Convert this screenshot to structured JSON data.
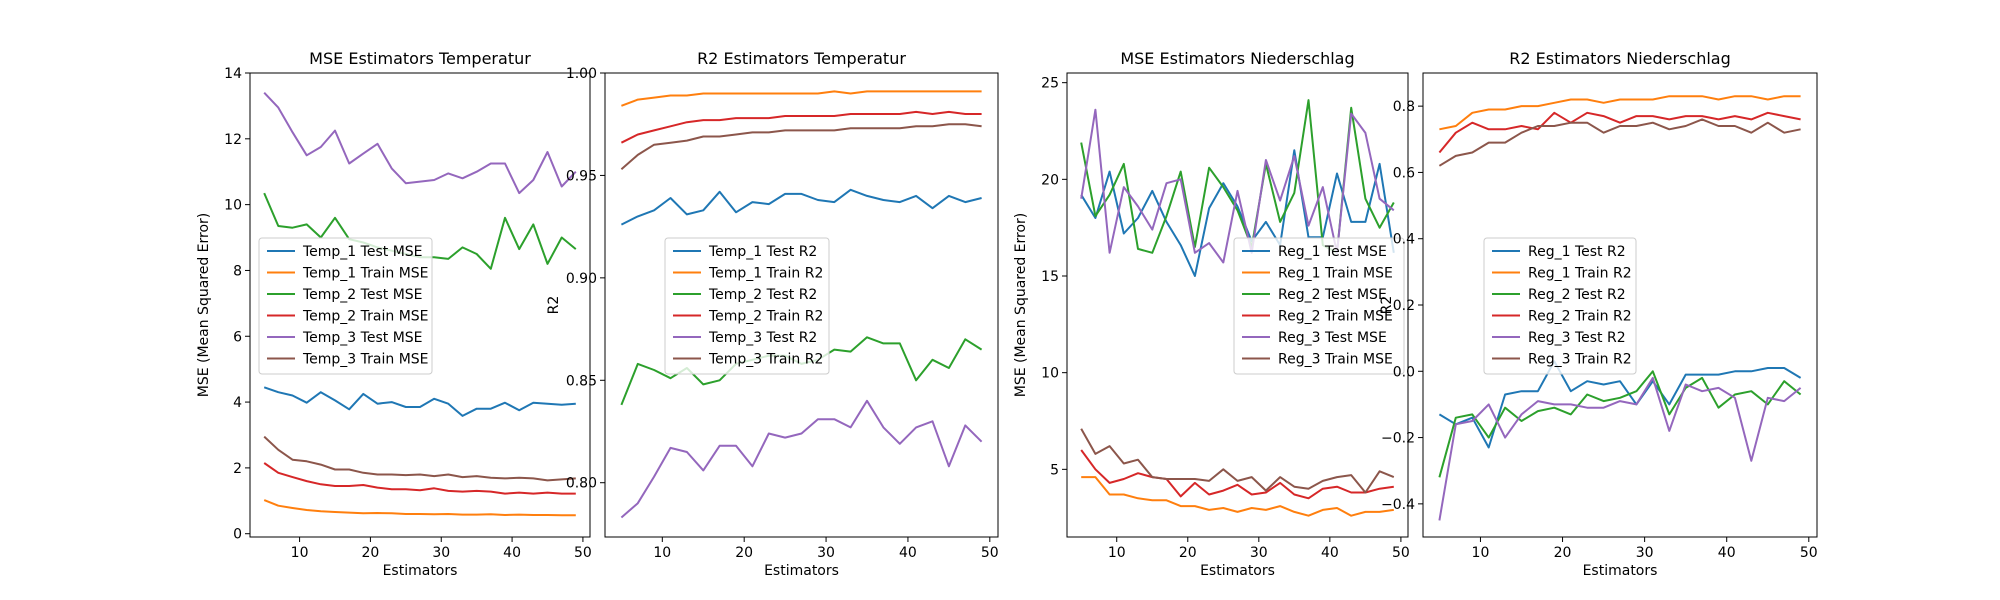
{
  "chart_data": [
    {
      "type": "line",
      "title": "MSE Estimators Temperatur",
      "xlabel": "Estimators",
      "ylabel": "MSE (Mean Squared Error)",
      "xlim": [
        3,
        51
      ],
      "ylim": [
        -0.1,
        14
      ],
      "xticks": [
        10,
        20,
        30,
        40,
        50
      ],
      "yticks": [
        0,
        2,
        4,
        6,
        8,
        10,
        12,
        14
      ],
      "ytick_labels": [
        "0",
        "2",
        "4",
        "6",
        "8",
        "10",
        "12",
        "14"
      ],
      "grid": false,
      "legend_placement": "center-left",
      "x": [
        5,
        7,
        9,
        11,
        13,
        15,
        17,
        19,
        21,
        23,
        25,
        27,
        29,
        31,
        33,
        35,
        37,
        39,
        41,
        43,
        45,
        47,
        49
      ],
      "series": [
        {
          "name": "Temp_1 Test MSE",
          "color": "#1f77b4",
          "values": [
            4.45,
            4.3,
            4.2,
            3.98,
            4.3,
            4.05,
            3.78,
            4.25,
            3.95,
            4.0,
            3.85,
            3.85,
            4.1,
            3.95,
            3.58,
            3.8,
            3.8,
            3.98,
            3.75,
            3.98,
            3.95,
            3.92,
            3.95
          ]
        },
        {
          "name": "Temp_1 Train MSE",
          "color": "#ff7f0e",
          "values": [
            1.02,
            0.85,
            0.78,
            0.72,
            0.68,
            0.66,
            0.64,
            0.62,
            0.63,
            0.62,
            0.6,
            0.6,
            0.59,
            0.6,
            0.58,
            0.58,
            0.59,
            0.57,
            0.58,
            0.57,
            0.57,
            0.56,
            0.56
          ]
        },
        {
          "name": "Temp_2 Test MSE",
          "color": "#2ca02c",
          "values": [
            10.35,
            9.35,
            9.3,
            9.4,
            9.0,
            9.6,
            8.95,
            8.85,
            8.7,
            8.6,
            8.5,
            8.4,
            8.4,
            8.35,
            8.7,
            8.5,
            8.05,
            9.6,
            8.65,
            9.4,
            8.2,
            9.0,
            8.65
          ]
        },
        {
          "name": "Temp_2 Train MSE",
          "color": "#d62728",
          "values": [
            2.15,
            1.85,
            1.72,
            1.6,
            1.5,
            1.45,
            1.45,
            1.48,
            1.4,
            1.35,
            1.35,
            1.32,
            1.38,
            1.3,
            1.28,
            1.3,
            1.28,
            1.22,
            1.25,
            1.22,
            1.25,
            1.22,
            1.22
          ]
        },
        {
          "name": "Temp_3 Test MSE",
          "color": "#9467bd",
          "values": [
            13.4,
            12.95,
            12.2,
            11.5,
            11.75,
            12.25,
            11.25,
            11.55,
            11.85,
            11.1,
            10.65,
            10.7,
            10.75,
            10.95,
            10.8,
            11.0,
            11.25,
            11.25,
            10.35,
            10.75,
            11.6,
            10.55,
            11.0
          ]
        },
        {
          "name": "Temp_3 Train MSE",
          "color": "#8c564b",
          "values": [
            2.95,
            2.55,
            2.25,
            2.2,
            2.1,
            1.95,
            1.95,
            1.85,
            1.8,
            1.8,
            1.78,
            1.8,
            1.75,
            1.8,
            1.72,
            1.75,
            1.7,
            1.68,
            1.7,
            1.68,
            1.62,
            1.65,
            1.68
          ]
        }
      ]
    },
    {
      "type": "line",
      "title": "R2 Estimators Temperatur",
      "xlabel": "Estimators",
      "ylabel": "R2",
      "xlim": [
        3,
        51
      ],
      "ylim": [
        0.7735,
        1.0
      ],
      "xticks": [
        10,
        20,
        30,
        40,
        50
      ],
      "yticks": [
        0.8,
        0.85,
        0.9,
        0.95,
        1.0
      ],
      "ytick_labels": [
        "0.80",
        "0.85",
        "0.90",
        "0.95",
        "1.00"
      ],
      "grid": false,
      "legend_placement": "center-left",
      "x": [
        5,
        7,
        9,
        11,
        13,
        15,
        17,
        19,
        21,
        23,
        25,
        27,
        29,
        31,
        33,
        35,
        37,
        39,
        41,
        43,
        45,
        47,
        49
      ],
      "series": [
        {
          "name": "Temp_1 Test R2",
          "color": "#1f77b4",
          "values": [
            0.926,
            0.93,
            0.933,
            0.939,
            0.931,
            0.933,
            0.942,
            0.932,
            0.937,
            0.936,
            0.941,
            0.941,
            0.938,
            0.937,
            0.943,
            0.94,
            0.938,
            0.937,
            0.94,
            0.934,
            0.94,
            0.937,
            0.939
          ]
        },
        {
          "name": "Temp_1 Train R2",
          "color": "#ff7f0e",
          "values": [
            0.984,
            0.987,
            0.988,
            0.989,
            0.989,
            0.99,
            0.99,
            0.99,
            0.99,
            0.99,
            0.99,
            0.99,
            0.99,
            0.991,
            0.99,
            0.991,
            0.991,
            0.991,
            0.991,
            0.991,
            0.991,
            0.991,
            0.991
          ]
        },
        {
          "name": "Temp_2 Test R2",
          "color": "#2ca02c",
          "values": [
            0.838,
            0.858,
            0.855,
            0.851,
            0.856,
            0.848,
            0.85,
            0.858,
            0.86,
            0.862,
            0.862,
            0.858,
            0.86,
            0.865,
            0.864,
            0.871,
            0.868,
            0.868,
            0.85,
            0.86,
            0.856,
            0.87,
            0.865
          ]
        },
        {
          "name": "Temp_2 Train R2",
          "color": "#d62728",
          "values": [
            0.966,
            0.97,
            0.972,
            0.974,
            0.976,
            0.977,
            0.977,
            0.978,
            0.978,
            0.978,
            0.979,
            0.979,
            0.979,
            0.979,
            0.98,
            0.98,
            0.98,
            0.98,
            0.981,
            0.98,
            0.981,
            0.98,
            0.98
          ]
        },
        {
          "name": "Temp_3 Test R2",
          "color": "#9467bd",
          "values": [
            0.783,
            0.79,
            0.803,
            0.817,
            0.815,
            0.806,
            0.818,
            0.818,
            0.808,
            0.824,
            0.822,
            0.824,
            0.831,
            0.831,
            0.827,
            0.84,
            0.827,
            0.819,
            0.827,
            0.83,
            0.808,
            0.828,
            0.82
          ]
        },
        {
          "name": "Temp_3 Train R2",
          "color": "#8c564b",
          "values": [
            0.953,
            0.96,
            0.965,
            0.966,
            0.967,
            0.969,
            0.969,
            0.97,
            0.971,
            0.971,
            0.972,
            0.972,
            0.972,
            0.972,
            0.973,
            0.973,
            0.973,
            0.973,
            0.974,
            0.974,
            0.975,
            0.975,
            0.974
          ]
        }
      ]
    },
    {
      "type": "line",
      "title": "MSE Estimators Niederschlag",
      "xlabel": "Estimators",
      "ylabel": "MSE (Mean Squared Error)",
      "xlim": [
        3,
        51
      ],
      "ylim": [
        1.5,
        25.5
      ],
      "xticks": [
        10,
        20,
        30,
        40,
        50
      ],
      "yticks": [
        5,
        10,
        15,
        20,
        25
      ],
      "ytick_labels": [
        "5",
        "10",
        "15",
        "20",
        "25"
      ],
      "grid": false,
      "legend_placement": "center-right",
      "x": [
        5,
        7,
        9,
        11,
        13,
        15,
        17,
        19,
        21,
        23,
        25,
        27,
        29,
        31,
        33,
        35,
        37,
        39,
        41,
        43,
        45,
        47,
        49
      ],
      "series": [
        {
          "name": "Reg_1 Test MSE",
          "color": "#1f77b4",
          "values": [
            19.2,
            18.0,
            20.4,
            17.2,
            18.0,
            19.4,
            17.8,
            16.6,
            15.0,
            18.5,
            19.8,
            18.6,
            16.8,
            17.8,
            16.6,
            21.5,
            17.0,
            17.0,
            20.3,
            17.8,
            17.8,
            20.8,
            16.2
          ]
        },
        {
          "name": "Reg_1 Train MSE",
          "color": "#ff7f0e",
          "values": [
            4.6,
            4.6,
            3.7,
            3.7,
            3.5,
            3.4,
            3.4,
            3.1,
            3.1,
            2.9,
            3.0,
            2.8,
            3.0,
            2.9,
            3.1,
            2.8,
            2.6,
            2.9,
            3.0,
            2.6,
            2.8,
            2.8,
            2.9
          ]
        },
        {
          "name": "Reg_2 Test MSE",
          "color": "#2ca02c",
          "values": [
            21.9,
            18.1,
            19.2,
            20.8,
            16.4,
            16.2,
            18.1,
            20.4,
            16.5,
            20.6,
            19.6,
            18.4,
            16.5,
            20.8,
            17.8,
            19.3,
            24.1,
            16.6,
            16.2,
            23.7,
            19.0,
            17.5,
            18.8
          ]
        },
        {
          "name": "Reg_2 Train MSE",
          "color": "#d62728",
          "values": [
            6.0,
            5.0,
            4.3,
            4.5,
            4.8,
            4.6,
            4.5,
            3.6,
            4.3,
            3.7,
            3.9,
            4.2,
            3.7,
            3.8,
            4.3,
            3.7,
            3.5,
            4.0,
            4.1,
            3.8,
            3.8,
            4.0,
            4.1
          ]
        },
        {
          "name": "Reg_3 Test MSE",
          "color": "#9467bd",
          "values": [
            19.0,
            23.6,
            16.2,
            19.6,
            18.6,
            17.4,
            19.8,
            20.0,
            16.2,
            16.7,
            15.7,
            19.4,
            16.2,
            21.0,
            18.9,
            21.2,
            17.6,
            19.6,
            16.2,
            23.4,
            22.4,
            19.0,
            18.4
          ]
        },
        {
          "name": "Reg_3 Train MSE",
          "color": "#8c564b",
          "values": [
            7.1,
            5.8,
            6.2,
            5.3,
            5.5,
            4.6,
            4.5,
            4.5,
            4.5,
            4.4,
            5.0,
            4.4,
            4.6,
            3.9,
            4.6,
            4.1,
            4.0,
            4.4,
            4.6,
            4.7,
            3.8,
            4.9,
            4.6
          ]
        }
      ]
    },
    {
      "type": "line",
      "title": "R2 Estimators Niederschlag",
      "xlabel": "Estimators",
      "ylabel": "R2",
      "xlim": [
        3,
        51
      ],
      "ylim": [
        -0.5,
        0.9
      ],
      "xticks": [
        10,
        20,
        30,
        40,
        50
      ],
      "yticks": [
        -0.4,
        -0.2,
        0.0,
        0.2,
        0.4,
        0.6,
        0.8
      ],
      "ytick_labels": [
        "−0.4",
        "−0.2",
        "0.0",
        "0.2",
        "0.4",
        "0.6",
        "0.8"
      ],
      "grid": false,
      "legend_placement": "center-left",
      "x": [
        5,
        7,
        9,
        11,
        13,
        15,
        17,
        19,
        21,
        23,
        25,
        27,
        29,
        31,
        33,
        35,
        37,
        39,
        41,
        43,
        45,
        47,
        49
      ],
      "series": [
        {
          "name": "Reg_1 Test R2",
          "color": "#1f77b4",
          "values": [
            -0.13,
            -0.16,
            -0.14,
            -0.23,
            -0.07,
            -0.06,
            -0.06,
            0.03,
            -0.06,
            -0.03,
            -0.04,
            -0.03,
            -0.1,
            -0.03,
            -0.1,
            -0.01,
            -0.01,
            -0.01,
            0.0,
            0.0,
            0.01,
            0.01,
            -0.02
          ]
        },
        {
          "name": "Reg_1 Train R2",
          "color": "#ff7f0e",
          "values": [
            0.73,
            0.74,
            0.78,
            0.79,
            0.79,
            0.8,
            0.8,
            0.81,
            0.82,
            0.82,
            0.81,
            0.82,
            0.82,
            0.82,
            0.83,
            0.83,
            0.83,
            0.82,
            0.83,
            0.83,
            0.82,
            0.83,
            0.83
          ]
        },
        {
          "name": "Reg_2 Test R2",
          "color": "#2ca02c",
          "values": [
            -0.32,
            -0.14,
            -0.13,
            -0.2,
            -0.11,
            -0.15,
            -0.12,
            -0.11,
            -0.13,
            -0.07,
            -0.09,
            -0.08,
            -0.06,
            0.0,
            -0.13,
            -0.05,
            -0.02,
            -0.11,
            -0.07,
            -0.06,
            -0.1,
            -0.03,
            -0.07
          ]
        },
        {
          "name": "Reg_2 Train R2",
          "color": "#d62728",
          "values": [
            0.66,
            0.72,
            0.75,
            0.73,
            0.73,
            0.74,
            0.73,
            0.78,
            0.75,
            0.78,
            0.77,
            0.75,
            0.77,
            0.77,
            0.76,
            0.77,
            0.77,
            0.76,
            0.77,
            0.76,
            0.78,
            0.77,
            0.76
          ]
        },
        {
          "name": "Reg_3 Test R2",
          "color": "#9467bd",
          "values": [
            -0.45,
            -0.16,
            -0.15,
            -0.1,
            -0.2,
            -0.13,
            -0.09,
            -0.1,
            -0.1,
            -0.11,
            -0.11,
            -0.09,
            -0.1,
            -0.02,
            -0.18,
            -0.04,
            -0.06,
            -0.05,
            -0.08,
            -0.27,
            -0.08,
            -0.09,
            -0.05
          ]
        },
        {
          "name": "Reg_3 Train R2",
          "color": "#8c564b",
          "values": [
            0.62,
            0.65,
            0.66,
            0.69,
            0.69,
            0.72,
            0.74,
            0.74,
            0.75,
            0.75,
            0.72,
            0.74,
            0.74,
            0.75,
            0.73,
            0.74,
            0.76,
            0.74,
            0.74,
            0.72,
            0.75,
            0.72,
            0.73
          ]
        }
      ]
    }
  ]
}
